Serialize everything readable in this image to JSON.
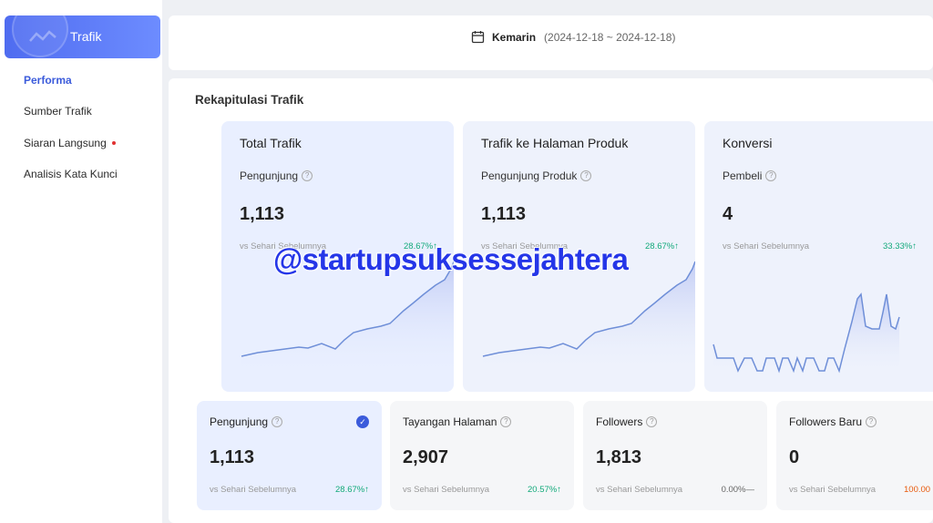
{
  "sidebar": {
    "brand_label": "Trafik",
    "items": [
      {
        "label": "Performa"
      },
      {
        "label": "Sumber Trafik"
      },
      {
        "label": "Siaran Langsung"
      },
      {
        "label": "Analisis Kata Kunci"
      }
    ]
  },
  "datebar": {
    "label": "Kemarin",
    "range": "(2024-12-18 ~ 2024-12-18)"
  },
  "panel": {
    "title": "Rekapitulasi Trafik",
    "big_cards": [
      {
        "title": "Total Trafik",
        "metric": "Pengunjung",
        "value": "1,113",
        "vs": "vs Sehari Sebelumnya",
        "change": "28.67%↑"
      },
      {
        "title": "Trafik ke Halaman Produk",
        "metric": "Pengunjung Produk",
        "value": "1,113",
        "vs": "vs Sehari Sebelumnya",
        "change": "28.67%↑"
      },
      {
        "title": "Konversi",
        "metric": "Pembeli",
        "value": "4",
        "vs": "vs Sehari Sebelumnya",
        "change": "33.33%↑"
      }
    ],
    "small_cards": [
      {
        "title": "Pengunjung",
        "value": "1,113",
        "vs": "vs Sehari Sebelumnya",
        "change": "28.67%↑"
      },
      {
        "title": "Tayangan Halaman",
        "value": "2,907",
        "vs": "vs Sehari Sebelumnya",
        "change": "20.57%↑"
      },
      {
        "title": "Followers",
        "value": "1,813",
        "vs": "vs Sehari Sebelumnya",
        "change": "0.00%—"
      },
      {
        "title": "Followers Baru",
        "value": "0",
        "vs": "vs Sehari Sebelumnya",
        "change": "100.00"
      }
    ]
  },
  "watermark": "@startupsuksessejahtera",
  "colors": {
    "accent": "#3b5bdb",
    "positive": "#12a97a",
    "brand_start": "#4f6cf0",
    "brand_end": "#6d8cff"
  }
}
